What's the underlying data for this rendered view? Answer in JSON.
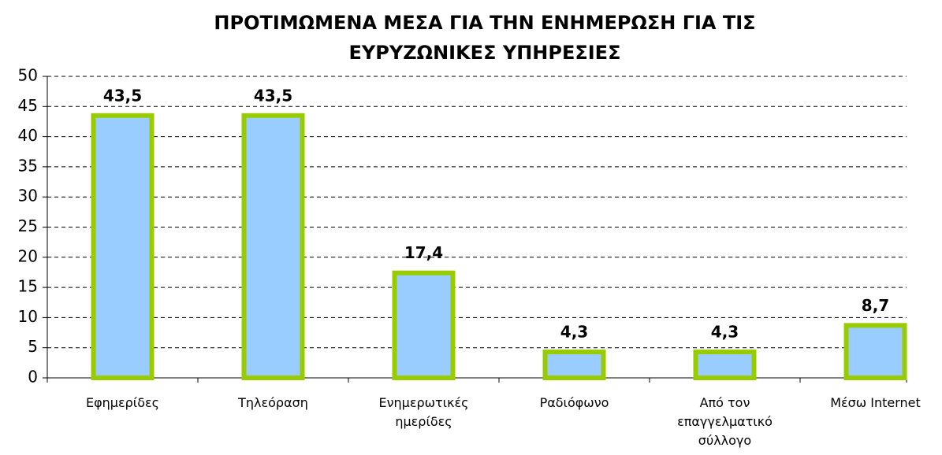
{
  "chart_data": {
    "type": "bar",
    "title": [
      "ΠΡΟΤΙΜΩΜΕΝΑ ΜΕΣΑ ΓΙΑ ΤΗΝ ΕΝΗΜΕΡΩΣΗ ΓΙΑ ΤΙΣ",
      "ΕΥΡΥΖΩΝΙΚΕΣ ΥΠΗΡΕΣΙΕΣ"
    ],
    "categories": [
      "Εφημερίδες",
      "Τηλεόραση",
      "Ενημερωτικές ημερίδες",
      "Ραδιόφωνο",
      "Από τον επαγγελματικό σύλλογο",
      "Μέσω Internet"
    ],
    "values": [
      43.5,
      43.5,
      17.4,
      4.3,
      4.3,
      8.7
    ],
    "value_labels": [
      "43,5",
      "43,5",
      "17,4",
      "4,3",
      "4,3",
      "8,7"
    ],
    "color": "#99ccff",
    "edge_color": "#99cc00",
    "ylim": [
      0,
      50
    ],
    "yticks": [
      0,
      5,
      10,
      15,
      20,
      25,
      30,
      35,
      40,
      45,
      50
    ],
    "grid": true
  }
}
